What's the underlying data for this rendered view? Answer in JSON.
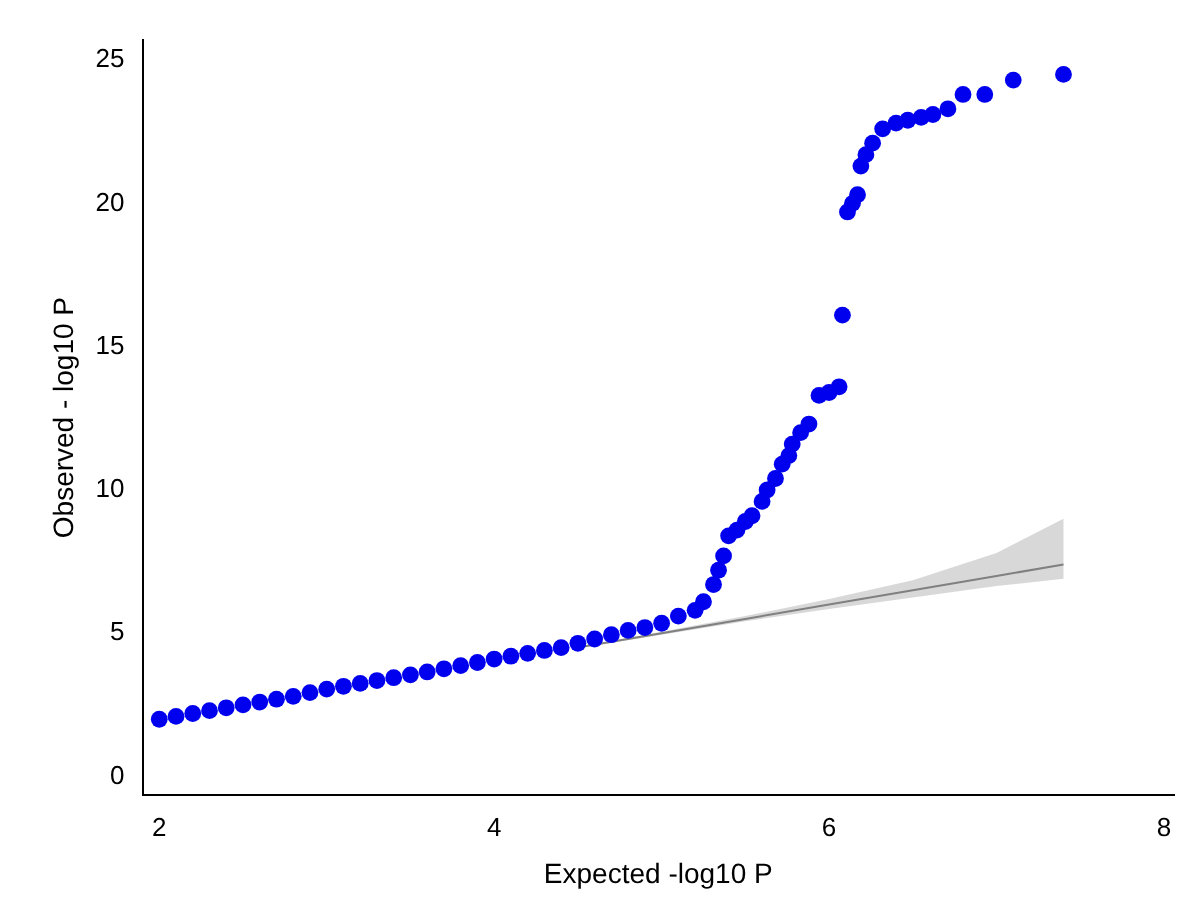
{
  "chart_data": {
    "type": "scatter",
    "xlabel": "Expected -log10 P",
    "ylabel": "Observed - log10 P",
    "xlim": [
      1.9,
      8.06
    ],
    "ylim": [
      -0.65,
      25.7
    ],
    "xticks": [
      2,
      4,
      6,
      8
    ],
    "yticks": [
      0,
      5,
      10,
      15,
      20,
      25
    ],
    "grid": false,
    "legend": false,
    "marker": "circle",
    "series": [
      {
        "type": "line",
        "color": "#808080",
        "marker": "none",
        "x": [
          4.5,
          5,
          5.5,
          6,
          6.5,
          7,
          7.4
        ],
        "values": [
          4.5,
          5,
          5.5,
          6,
          6.5,
          7,
          7.4
        ],
        "lower": [
          4.48,
          4.95,
          5.42,
          5.85,
          6.25,
          6.65,
          6.9
        ],
        "upper": [
          4.52,
          5.05,
          5.6,
          6.2,
          6.85,
          7.8,
          9.0
        ]
      },
      {
        "color": "#0000ee",
        "x": [
          2.0,
          2.1,
          2.2,
          2.3,
          2.4,
          2.5,
          2.6,
          2.7,
          2.8,
          2.9,
          3.0,
          3.1,
          3.2,
          3.3,
          3.4,
          3.5,
          3.6,
          3.7,
          3.8,
          3.9,
          4.0,
          4.1,
          4.2,
          4.3,
          4.4,
          4.5,
          4.6,
          4.7,
          4.8,
          4.9,
          5.0,
          5.1,
          5.2,
          5.25,
          5.31,
          5.34,
          5.37,
          5.4,
          5.45,
          5.5,
          5.54,
          5.6,
          5.63,
          5.68,
          5.72,
          5.76,
          5.78,
          5.83,
          5.88,
          5.94,
          6.0,
          6.06,
          6.08,
          6.11,
          6.14,
          6.17,
          6.19,
          6.22,
          6.26,
          6.32,
          6.4,
          6.47,
          6.55,
          6.62,
          6.71,
          6.8,
          6.93,
          7.1,
          7.4
        ],
        "values": [
          2.0,
          2.1,
          2.2,
          2.3,
          2.4,
          2.5,
          2.6,
          2.7,
          2.8,
          2.93,
          3.05,
          3.15,
          3.25,
          3.35,
          3.45,
          3.55,
          3.65,
          3.76,
          3.87,
          3.98,
          4.1,
          4.2,
          4.3,
          4.4,
          4.5,
          4.65,
          4.8,
          4.95,
          5.1,
          5.2,
          5.35,
          5.6,
          5.8,
          6.1,
          6.7,
          7.2,
          7.7,
          8.4,
          8.6,
          8.9,
          9.1,
          9.6,
          10.0,
          10.4,
          10.9,
          11.2,
          11.6,
          12.0,
          12.3,
          13.3,
          13.4,
          13.6,
          16.1,
          19.7,
          20.0,
          20.3,
          21.3,
          21.7,
          22.1,
          22.6,
          22.8,
          22.9,
          23.0,
          23.1,
          23.3,
          23.8,
          23.8,
          24.3,
          24.5
        ]
      }
    ]
  }
}
